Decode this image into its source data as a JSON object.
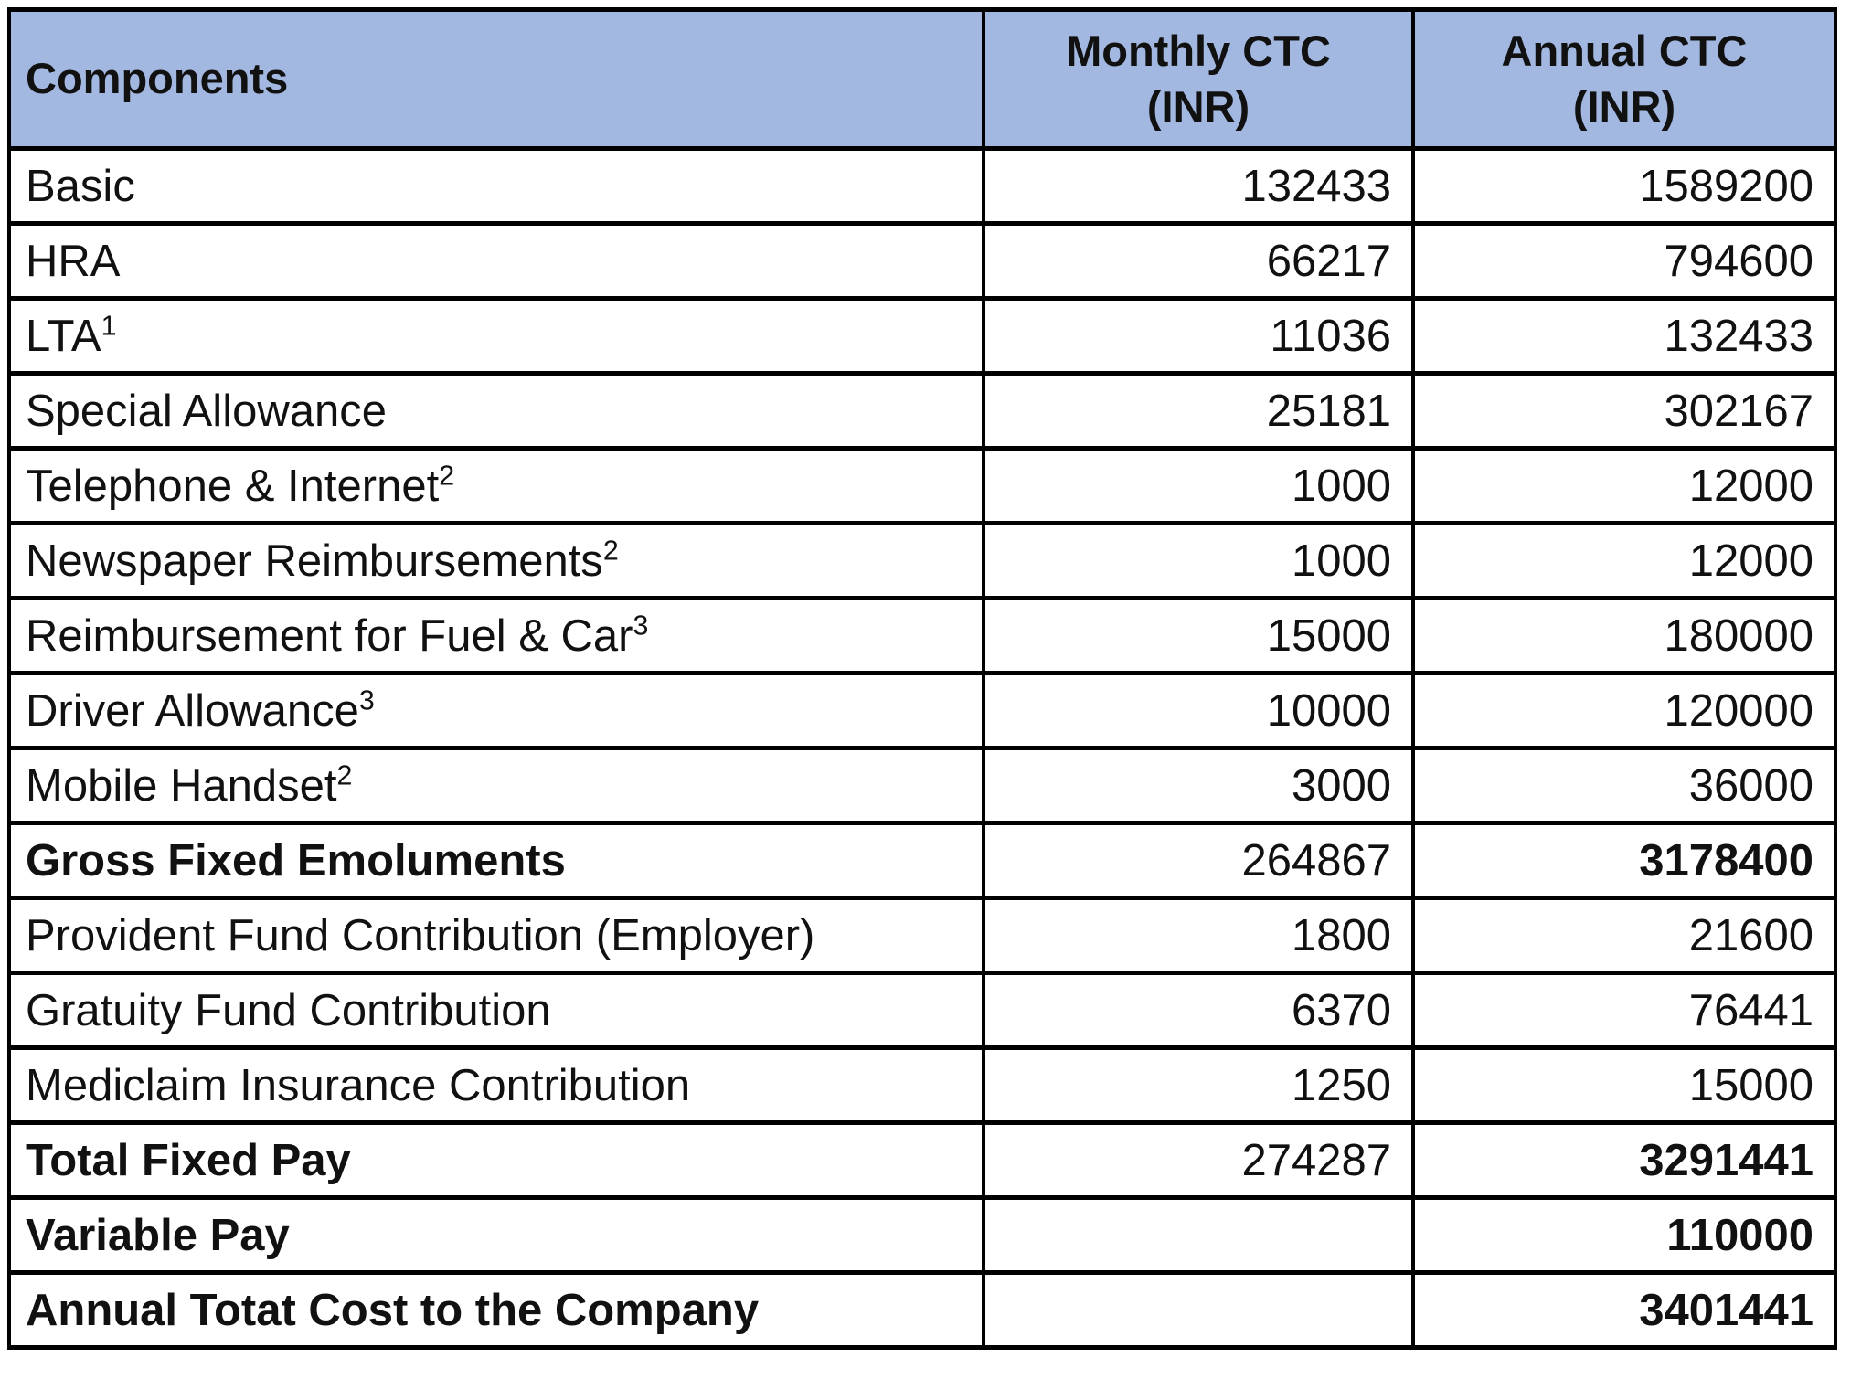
{
  "table": {
    "headers": {
      "components": "Components",
      "monthly_line1": "Monthly CTC",
      "monthly_line2": "(INR)",
      "annual_line1": "Annual CTC",
      "annual_line2": "(INR)"
    },
    "rows": [
      {
        "label": "Basic",
        "sup": "",
        "monthly": "132433",
        "annual": "1589200",
        "bold_label": false,
        "bold_monthly": false,
        "bold_annual": false,
        "green_annual": false
      },
      {
        "label": "HRA",
        "sup": "",
        "monthly": "66217",
        "annual": "794600",
        "bold_label": false,
        "bold_monthly": false,
        "bold_annual": false,
        "green_annual": false
      },
      {
        "label": "LTA",
        "sup": "1",
        "monthly": "11036",
        "annual": "132433",
        "bold_label": false,
        "bold_monthly": false,
        "bold_annual": false,
        "green_annual": false
      },
      {
        "label": "Special Allowance",
        "sup": "",
        "monthly": "25181",
        "annual": "302167",
        "bold_label": false,
        "bold_monthly": false,
        "bold_annual": false,
        "green_annual": false
      },
      {
        "label": "Telephone & Internet",
        "sup": "2",
        "monthly": "1000",
        "annual": "12000",
        "bold_label": false,
        "bold_monthly": false,
        "bold_annual": false,
        "green_annual": false
      },
      {
        "label": "Newspaper Reimbursements",
        "sup": "2",
        "monthly": "1000",
        "annual": "12000",
        "bold_label": false,
        "bold_monthly": false,
        "bold_annual": false,
        "green_annual": false
      },
      {
        "label": "Reimbursement for Fuel & Car",
        "sup": "3",
        "monthly": "15000",
        "annual": "180000",
        "bold_label": false,
        "bold_monthly": false,
        "bold_annual": false,
        "green_annual": false
      },
      {
        "label": "Driver Allowance",
        "sup": "3",
        "monthly": "10000",
        "annual": "120000",
        "bold_label": false,
        "bold_monthly": false,
        "bold_annual": false,
        "green_annual": false
      },
      {
        "label": "Mobile Handset",
        "sup": "2",
        "monthly": "3000",
        "annual": "36000",
        "bold_label": false,
        "bold_monthly": false,
        "bold_annual": false,
        "green_annual": false
      },
      {
        "label": "Gross Fixed Emoluments",
        "sup": "",
        "monthly": "264867",
        "annual": "3178400",
        "bold_label": true,
        "bold_monthly": false,
        "bold_annual": true,
        "green_annual": false
      },
      {
        "label": "Provident Fund Contribution (Employer)",
        "sup": "",
        "monthly": "1800",
        "annual": "21600",
        "bold_label": false,
        "bold_monthly": false,
        "bold_annual": false,
        "green_annual": false
      },
      {
        "label": "Gratuity Fund Contribution",
        "sup": "",
        "monthly": "6370",
        "annual": "76441",
        "bold_label": false,
        "bold_monthly": false,
        "bold_annual": false,
        "green_annual": false
      },
      {
        "label": "Mediclaim Insurance Contribution",
        "sup": "",
        "monthly": "1250",
        "annual": "15000",
        "bold_label": false,
        "bold_monthly": false,
        "bold_annual": false,
        "green_annual": false
      },
      {
        "label": "Total Fixed Pay",
        "sup": "",
        "monthly": "274287",
        "annual": "3291441",
        "bold_label": true,
        "bold_monthly": false,
        "bold_annual": true,
        "green_annual": true
      },
      {
        "label": "Variable Pay",
        "sup": "",
        "monthly": "",
        "annual": "110000",
        "bold_label": true,
        "bold_monthly": false,
        "bold_annual": true,
        "green_annual": false
      },
      {
        "label": "Annual Totat Cost to the Company",
        "sup": "",
        "monthly": "",
        "annual": "3401441",
        "bold_label": true,
        "bold_monthly": false,
        "bold_annual": true,
        "green_annual": true
      }
    ],
    "colors": {
      "header_bg": "#A3B8E1",
      "highlight_green": "#A9D08E",
      "border": "#000000"
    }
  }
}
